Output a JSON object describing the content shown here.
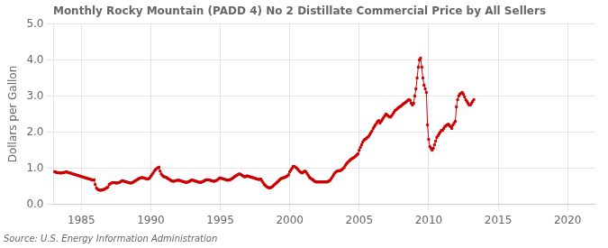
{
  "chart_data": {
    "type": "line",
    "title": "Monthly Rocky Mountain (PADD 4) No 2 Distillate Commercial Price by All Sellers",
    "ylabel": "Dollars per Gallon",
    "source": "Source: U.S. Energy Information Administration",
    "color": "#cc0000",
    "marker": "square",
    "grid": true,
    "xlim": [
      1983,
      2022
    ],
    "ylim": [
      0.0,
      5.0
    ],
    "xticks": [
      1985,
      1990,
      1995,
      2000,
      2005,
      2010,
      2015,
      2020
    ],
    "yticks": [
      {
        "value": 0.0,
        "label": "0.0"
      },
      {
        "value": 1.0,
        "label": "1.0"
      },
      {
        "value": 2.0,
        "label": "2.0"
      },
      {
        "value": 3.0,
        "label": "3.0"
      },
      {
        "value": 4.0,
        "label": "4.0"
      },
      {
        "value": 5.0,
        "label": "5.0"
      }
    ],
    "x": [
      1983,
      1983.0833333333333,
      1983.1666666666667,
      1983.25,
      1983.3333333333333,
      1983.4166666666667,
      1983.5,
      1983.5833333333333,
      1983.6666666666667,
      1983.75,
      1983.8333333333333,
      1983.9166666666667,
      1984,
      1984.0833333333333,
      1984.1666666666667,
      1984.25,
      1984.3333333333333,
      1984.4166666666667,
      1984.5,
      1984.5833333333333,
      1984.6666666666667,
      1984.75,
      1984.8333333333333,
      1984.9166666666667,
      1985,
      1985.0833333333333,
      1985.1666666666667,
      1985.25,
      1985.3333333333333,
      1985.4166666666667,
      1985.5,
      1985.5833333333333,
      1985.6666666666667,
      1985.75,
      1985.8333333333333,
      1985.9166666666667,
      1986,
      1986.0833333333333,
      1986.1666666666667,
      1986.25,
      1986.3333333333333,
      1986.4166666666667,
      1986.5,
      1986.5833333333333,
      1986.6666666666667,
      1986.75,
      1986.8333333333333,
      1986.9166666666667,
      1987,
      1987.0833333333333,
      1987.1666666666667,
      1987.25,
      1987.3333333333333,
      1987.4166666666667,
      1987.5,
      1987.5833333333333,
      1987.6666666666667,
      1987.75,
      1987.8333333333333,
      1987.9166666666667,
      1988,
      1988.0833333333333,
      1988.1666666666667,
      1988.25,
      1988.3333333333333,
      1988.4166666666667,
      1988.5,
      1988.5833333333333,
      1988.6666666666667,
      1988.75,
      1988.8333333333333,
      1988.9166666666667,
      1989,
      1989.0833333333333,
      1989.1666666666667,
      1989.25,
      1989.3333333333333,
      1989.4166666666667,
      1989.5,
      1989.5833333333333,
      1989.6666666666667,
      1989.75,
      1989.8333333333333,
      1989.9166666666667,
      1990,
      1990.0833333333333,
      1990.1666666666667,
      1990.25,
      1990.3333333333333,
      1990.4166666666667,
      1990.5,
      1990.5833333333333,
      1990.6666666666667,
      1990.75,
      1990.8333333333333,
      1990.9166666666667,
      1991,
      1991.0833333333333,
      1991.1666666666667,
      1991.25,
      1991.3333333333333,
      1991.4166666666667,
      1991.5,
      1991.5833333333333,
      1991.6666666666667,
      1991.75,
      1991.8333333333333,
      1991.9166666666667,
      1992,
      1992.0833333333333,
      1992.1666666666667,
      1992.25,
      1992.3333333333333,
      1992.4166666666667,
      1992.5,
      1992.5833333333333,
      1992.6666666666667,
      1992.75,
      1992.8333333333333,
      1992.9166666666667,
      1993,
      1993.0833333333333,
      1993.1666666666667,
      1993.25,
      1993.3333333333333,
      1993.4166666666667,
      1993.5,
      1993.5833333333333,
      1993.6666666666667,
      1993.75,
      1993.8333333333333,
      1993.9166666666667,
      1994,
      1994.0833333333333,
      1994.1666666666667,
      1994.25,
      1994.3333333333333,
      1994.4166666666667,
      1994.5,
      1994.5833333333333,
      1994.6666666666667,
      1994.75,
      1994.8333333333333,
      1994.9166666666667,
      1995,
      1995.0833333333333,
      1995.1666666666667,
      1995.25,
      1995.3333333333333,
      1995.4166666666667,
      1995.5,
      1995.5833333333333,
      1995.6666666666667,
      1995.75,
      1995.8333333333333,
      1995.9166666666667,
      1996,
      1996.0833333333333,
      1996.1666666666667,
      1996.25,
      1996.3333333333333,
      1996.4166666666667,
      1996.5,
      1996.5833333333333,
      1996.6666666666667,
      1996.75,
      1996.8333333333333,
      1996.9166666666667,
      1997,
      1997.0833333333333,
      1997.1666666666667,
      1997.25,
      1997.3333333333333,
      1997.4166666666667,
      1997.5,
      1997.5833333333333,
      1997.6666666666667,
      1997.75,
      1997.8333333333333,
      1997.9166666666667,
      1998,
      1998.0833333333333,
      1998.1666666666667,
      1998.25,
      1998.3333333333333,
      1998.4166666666667,
      1998.5,
      1998.5833333333333,
      1998.6666666666667,
      1998.75,
      1998.8333333333333,
      1998.9166666666667,
      1999,
      1999.0833333333333,
      1999.1666666666667,
      1999.25,
      1999.3333333333333,
      1999.4166666666667,
      1999.5,
      1999.5833333333333,
      1999.6666666666667,
      1999.75,
      1999.8333333333333,
      1999.9166666666667,
      2000,
      2000.0833333333333,
      2000.1666666666667,
      2000.25,
      2000.3333333333333,
      2000.4166666666667,
      2000.5,
      2000.5833333333333,
      2000.6666666666667,
      2000.75,
      2000.8333333333333,
      2000.9166666666667,
      2001,
      2001.0833333333333,
      2001.1666666666667,
      2001.25,
      2001.3333333333333,
      2001.4166666666667,
      2001.5,
      2001.5833333333333,
      2001.6666666666667,
      2001.75,
      2001.8333333333333,
      2001.9166666666667,
      2002,
      2002.0833333333333,
      2002.1666666666667,
      2002.25,
      2002.3333333333333,
      2002.4166666666667,
      2002.5,
      2002.5833333333333,
      2002.6666666666667,
      2002.75,
      2002.8333333333333,
      2002.9166666666667,
      2003,
      2003.0833333333333,
      2003.1666666666667,
      2003.25,
      2003.3333333333333,
      2003.4166666666667,
      2003.5,
      2003.5833333333333,
      2003.6666666666667,
      2003.75,
      2003.8333333333333,
      2003.9166666666667,
      2004,
      2004.0833333333333,
      2004.1666666666667,
      2004.25,
      2004.3333333333333,
      2004.4166666666667,
      2004.5,
      2004.5833333333333,
      2004.6666666666667,
      2004.75,
      2004.8333333333333,
      2004.9166666666667,
      2005,
      2005.0833333333333,
      2005.1666666666667,
      2005.25,
      2005.3333333333333,
      2005.4166666666667,
      2005.5,
      2005.5833333333333,
      2005.6666666666667,
      2005.75,
      2005.8333333333333,
      2005.9166666666667,
      2006,
      2006.0833333333333,
      2006.1666666666667,
      2006.25,
      2006.3333333333333,
      2006.4166666666667,
      2006.5,
      2006.5833333333333,
      2006.6666666666667,
      2006.75,
      2006.8333333333333,
      2006.9166666666667,
      2007,
      2007.0833333333333,
      2007.1666666666667,
      2007.25,
      2007.3333333333333,
      2007.4166666666667,
      2007.5,
      2007.5833333333333,
      2007.6666666666667,
      2007.75,
      2007.8333333333333,
      2007.9166666666667,
      2008,
      2008.0833333333333,
      2008.1666666666667,
      2008.25,
      2008.3333333333333,
      2008.4166666666667,
      2008.5,
      2008.5833333333333,
      2008.6666666666667,
      2008.75,
      2008.8333333333333,
      2008.9166666666667,
      2009,
      2009.0833333333333,
      2009.1666666666667,
      2009.25,
      2009.3333333333333,
      2009.4166666666667,
      2009.5,
      2009.5833333333333,
      2009.6666666666667,
      2009.75,
      2009.8333333333333,
      2009.9166666666667,
      2010,
      2010.0833333333333,
      2010.1666666666667,
      2010.25,
      2010.3333333333333,
      2010.4166666666667,
      2010.5,
      2010.5833333333333,
      2010.6666666666667,
      2010.75,
      2010.8333333333333,
      2010.9166666666667,
      2011,
      2011.0833333333333,
      2011.1666666666667,
      2011.25,
      2011.3333333333333,
      2011.4166666666667,
      2011.5,
      2011.5833333333333,
      2011.6666666666667,
      2011.75,
      2011.8333333333333,
      2011.9166666666667,
      2012,
      2012.0833333333333,
      2012.1666666666667,
      2012.25,
      2012.3333333333333,
      2012.4166666666667,
      2012.5,
      2012.5833333333333,
      2012.6666666666667,
      2012.75,
      2012.8333333333333,
      2012.9166666666667,
      2013,
      2013.0833333333333,
      2013.1666666666667,
      2013.25
    ],
    "values": [
      0.91,
      0.9,
      0.89,
      0.88,
      0.88,
      0.87,
      0.87,
      0.87,
      0.88,
      0.88,
      0.89,
      0.9,
      0.89,
      0.88,
      0.87,
      0.86,
      0.85,
      0.84,
      0.83,
      0.82,
      0.81,
      0.8,
      0.79,
      0.78,
      0.77,
      0.76,
      0.75,
      0.74,
      0.73,
      0.72,
      0.71,
      0.7,
      0.69,
      0.68,
      0.67,
      0.68,
      0.55,
      0.45,
      0.42,
      0.4,
      0.39,
      0.39,
      0.4,
      0.41,
      0.42,
      0.44,
      0.46,
      0.48,
      0.55,
      0.57,
      0.59,
      0.6,
      0.6,
      0.6,
      0.59,
      0.59,
      0.6,
      0.61,
      0.63,
      0.65,
      0.65,
      0.64,
      0.63,
      0.62,
      0.61,
      0.6,
      0.59,
      0.59,
      0.6,
      0.62,
      0.64,
      0.66,
      0.68,
      0.7,
      0.72,
      0.73,
      0.74,
      0.74,
      0.73,
      0.72,
      0.71,
      0.7,
      0.71,
      0.73,
      0.78,
      0.82,
      0.87,
      0.92,
      0.96,
      0.99,
      1.01,
      1.03,
      0.92,
      0.84,
      0.8,
      0.77,
      0.76,
      0.75,
      0.73,
      0.71,
      0.69,
      0.67,
      0.65,
      0.64,
      0.64,
      0.65,
      0.66,
      0.67,
      0.67,
      0.66,
      0.65,
      0.64,
      0.63,
      0.62,
      0.61,
      0.61,
      0.62,
      0.63,
      0.65,
      0.67,
      0.67,
      0.66,
      0.65,
      0.64,
      0.63,
      0.62,
      0.61,
      0.61,
      0.62,
      0.63,
      0.65,
      0.67,
      0.68,
      0.68,
      0.68,
      0.67,
      0.66,
      0.65,
      0.64,
      0.64,
      0.65,
      0.67,
      0.69,
      0.72,
      0.73,
      0.72,
      0.71,
      0.7,
      0.69,
      0.68,
      0.67,
      0.67,
      0.68,
      0.69,
      0.71,
      0.73,
      0.76,
      0.78,
      0.8,
      0.82,
      0.84,
      0.84,
      0.82,
      0.8,
      0.78,
      0.76,
      0.77,
      0.79,
      0.78,
      0.77,
      0.76,
      0.75,
      0.74,
      0.73,
      0.72,
      0.71,
      0.7,
      0.69,
      0.69,
      0.7,
      0.65,
      0.6,
      0.55,
      0.52,
      0.49,
      0.47,
      0.46,
      0.46,
      0.47,
      0.49,
      0.52,
      0.55,
      0.58,
      0.61,
      0.64,
      0.67,
      0.7,
      0.72,
      0.73,
      0.74,
      0.75,
      0.77,
      0.79,
      0.82,
      0.9,
      0.95,
      1.0,
      1.05,
      1.05,
      1.03,
      1.0,
      0.97,
      0.93,
      0.9,
      0.88,
      0.87,
      0.9,
      0.92,
      0.9,
      0.85,
      0.8,
      0.75,
      0.72,
      0.7,
      0.68,
      0.65,
      0.63,
      0.62,
      0.62,
      0.62,
      0.62,
      0.62,
      0.62,
      0.62,
      0.62,
      0.62,
      0.62,
      0.63,
      0.65,
      0.67,
      0.72,
      0.77,
      0.82,
      0.87,
      0.9,
      0.92,
      0.93,
      0.93,
      0.94,
      0.96,
      0.99,
      1.02,
      1.08,
      1.12,
      1.16,
      1.19,
      1.22,
      1.25,
      1.27,
      1.29,
      1.31,
      1.34,
      1.37,
      1.4,
      1.5,
      1.58,
      1.65,
      1.72,
      1.77,
      1.8,
      1.82,
      1.85,
      1.88,
      1.93,
      1.98,
      2.03,
      2.1,
      2.15,
      2.2,
      2.25,
      2.3,
      2.32,
      2.25,
      2.3,
      2.35,
      2.4,
      2.45,
      2.5,
      2.48,
      2.45,
      2.42,
      2.42,
      2.45,
      2.5,
      2.55,
      2.6,
      2.62,
      2.65,
      2.68,
      2.7,
      2.72,
      2.75,
      2.78,
      2.8,
      2.82,
      2.85,
      2.88,
      2.9,
      2.88,
      2.8,
      2.75,
      2.8,
      3.0,
      3.2,
      3.5,
      3.8,
      4.0,
      4.05,
      3.8,
      3.5,
      3.3,
      3.2,
      3.1,
      2.2,
      1.8,
      1.6,
      1.55,
      1.5,
      1.55,
      1.65,
      1.75,
      1.85,
      1.9,
      1.95,
      2.0,
      2.05,
      2.05,
      2.1,
      2.15,
      2.18,
      2.2,
      2.22,
      2.18,
      2.15,
      2.1,
      2.2,
      2.25,
      2.3,
      2.7,
      2.9,
      3.0,
      3.05,
      3.08,
      3.1,
      3.05,
      2.98,
      2.9,
      2.85,
      2.8,
      2.75,
      2.75,
      2.8,
      2.85,
      2.9
    ]
  }
}
